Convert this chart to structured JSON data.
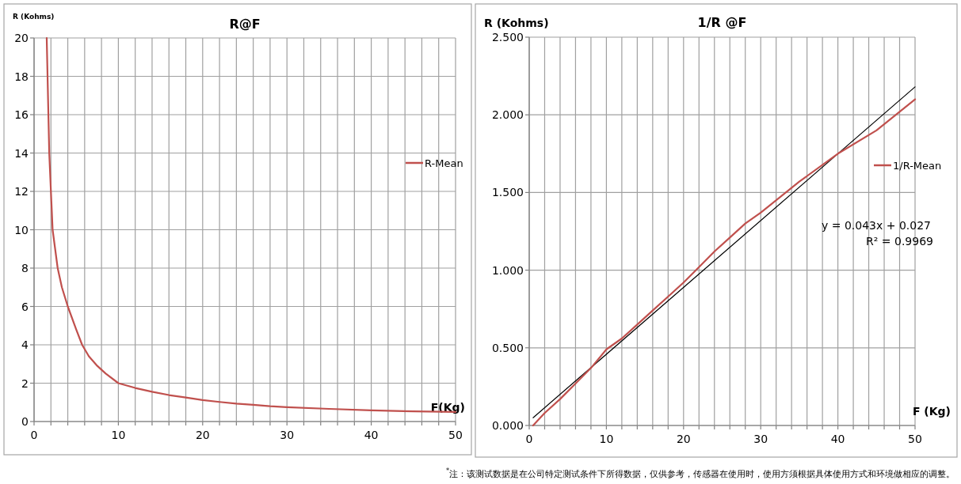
{
  "chart_data": [
    {
      "type": "line",
      "title": "R@F",
      "xlabel": "F(Kg)",
      "ylabel": "R (Kohms)",
      "xlim": [
        0,
        50
      ],
      "ylim": [
        0,
        20
      ],
      "xticks": [
        0,
        {
          "value": 2,
          "label": null
        },
        {
          "value": 4,
          "label": null
        },
        {
          "value": 6,
          "label": null
        },
        {
          "value": 8,
          "label": null
        },
        10,
        {
          "value": 12,
          "label": null
        },
        {
          "value": 14,
          "label": null
        },
        {
          "value": 16,
          "label": null
        },
        {
          "value": 18,
          "label": null
        },
        20,
        {
          "value": 22,
          "label": null
        },
        {
          "value": 24,
          "label": null
        },
        {
          "value": 26,
          "label": null
        },
        {
          "value": 28,
          "label": null
        },
        30,
        {
          "value": 32,
          "label": null
        },
        {
          "value": 34,
          "label": null
        },
        {
          "value": 36,
          "label": null
        },
        {
          "value": 38,
          "label": null
        },
        40,
        {
          "value": 42,
          "label": null
        },
        {
          "value": 44,
          "label": null
        },
        {
          "value": 46,
          "label": null
        },
        {
          "value": 48,
          "label": null
        },
        50
      ],
      "yticks": [
        0,
        2,
        4,
        6,
        8,
        10,
        12,
        14,
        16,
        18,
        20
      ],
      "grid": true,
      "legend": "right",
      "marker": "none",
      "line_style": "solid",
      "series": [
        {
          "name": "R-Mean",
          "color": "#c0504d",
          "x": [
            1.5,
            1.8,
            2.2,
            2.8,
            3.3,
            4,
            5,
            5.7,
            6.5,
            7.5,
            8.5,
            10,
            12,
            14,
            16,
            18,
            20,
            22,
            24,
            26,
            28,
            30,
            35,
            40,
            45,
            50
          ],
          "values": [
            20,
            14,
            10,
            8,
            7,
            6,
            4.8,
            4,
            3.4,
            2.9,
            2.5,
            2,
            1.75,
            1.55,
            1.38,
            1.25,
            1.12,
            1.02,
            0.93,
            0.87,
            0.8,
            0.75,
            0.66,
            0.58,
            0.53,
            0.5
          ]
        }
      ]
    },
    {
      "type": "line",
      "title": "1/R @F",
      "xlabel": "F (Kg)",
      "ylabel": "R (Kohms)",
      "xlim": [
        0,
        50
      ],
      "ylim": [
        0,
        2.5
      ],
      "xticks": [
        0,
        {
          "value": 2,
          "label": null
        },
        {
          "value": 4,
          "label": null
        },
        {
          "value": 6,
          "label": null
        },
        {
          "value": 8,
          "label": null
        },
        10,
        {
          "value": 12,
          "label": null
        },
        {
          "value": 14,
          "label": null
        },
        {
          "value": 16,
          "label": null
        },
        {
          "value": 18,
          "label": null
        },
        20,
        {
          "value": 22,
          "label": null
        },
        {
          "value": 24,
          "label": null
        },
        {
          "value": 26,
          "label": null
        },
        {
          "value": 28,
          "label": null
        },
        30,
        {
          "value": 32,
          "label": null
        },
        {
          "value": 34,
          "label": null
        },
        {
          "value": 36,
          "label": null
        },
        {
          "value": 38,
          "label": null
        },
        40,
        {
          "value": 42,
          "label": null
        },
        {
          "value": 44,
          "label": null
        },
        {
          "value": 46,
          "label": null
        },
        {
          "value": 48,
          "label": null
        },
        50
      ],
      "yticks": [
        {
          "value": 0,
          "label": "0.000"
        },
        {
          "value": 0.5,
          "label": "0.500"
        },
        {
          "value": 1,
          "label": "1.000"
        },
        {
          "value": 1.5,
          "label": "1.500"
        },
        {
          "value": 2,
          "label": "2.000"
        },
        {
          "value": 2.5,
          "label": "2.500"
        }
      ],
      "grid": true,
      "legend": "right",
      "marker": "none",
      "line_style": "solid",
      "annotations": [
        "y = 0.043x + 0.027",
        "R² = 0.9969",
        "$^{*}$注：该测试数据是在公司特定测试条件下所得数据，仅供参考，传感器在使用时，使用方须根据具体使用方式和环境做相应的调整。"
      ],
      "series": [
        {
          "type": "line",
          "color": "#000000",
          "x": [
            0.5,
            50
          ],
          "values": [
            0.05,
            2.18
          ]
        },
        {
          "name": "1/R-Mean",
          "color": "#c0504d",
          "x": [
            0.5,
            2,
            4,
            6,
            8,
            10,
            12,
            14,
            16,
            18,
            20,
            22,
            24,
            26,
            28,
            30,
            35,
            40,
            45,
            50
          ],
          "values": [
            0,
            0.08,
            0.17,
            0.27,
            0.37,
            0.49,
            0.56,
            0.65,
            0.74,
            0.83,
            0.92,
            1.02,
            1.12,
            1.21,
            1.3,
            1.37,
            1.57,
            1.75,
            1.9,
            2.1
          ]
        }
      ]
    }
  ]
}
